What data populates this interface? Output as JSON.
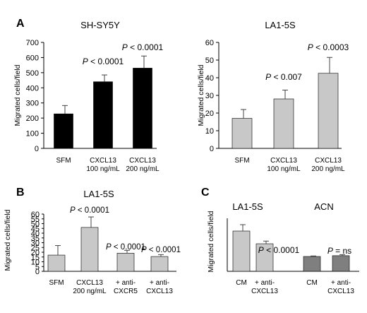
{
  "chart_data": [
    {
      "type": "bar",
      "panel": "A",
      "title": "SH-SY5Y",
      "ylabel": "Migrated cells/field",
      "ylim": [
        0,
        700
      ],
      "yticks": [
        0,
        100,
        200,
        300,
        400,
        500,
        600,
        700
      ],
      "categories": [
        [
          "SFM"
        ],
        [
          "CXCL13",
          "100 ng/mL"
        ],
        [
          "CXCL13",
          "200 ng/mL"
        ]
      ],
      "values": [
        228,
        440,
        530
      ],
      "errors": [
        55,
        45,
        80
      ],
      "bar_color": "#000000",
      "annotations": [
        null,
        [
          "P",
          " < 0.0001"
        ],
        [
          "P",
          " < 0.0001"
        ]
      ]
    },
    {
      "type": "bar",
      "panel": "",
      "title": "LA1-5S",
      "ylabel": "Migrated cells/field",
      "ylim": [
        0,
        60
      ],
      "yticks": [
        0,
        10,
        20,
        30,
        40,
        50,
        60
      ],
      "categories": [
        [
          "SFM"
        ],
        [
          "CXCL13",
          "100 ng/mL"
        ],
        [
          "CXCL13",
          "200 ng/mL"
        ]
      ],
      "values": [
        17,
        28,
        42.5
      ],
      "errors": [
        5,
        5,
        9
      ],
      "bar_color": "#c8c8c8",
      "annotations": [
        null,
        [
          "P",
          " < 0.007"
        ],
        [
          "P",
          " < 0.0003"
        ]
      ]
    },
    {
      "type": "bar",
      "panel": "B",
      "title": "LA1-5S",
      "ylabel": "Migrated cells/field",
      "ylim": [
        0,
        60
      ],
      "yticks": [
        0,
        5,
        10,
        15,
        20,
        25,
        30,
        35,
        40,
        45,
        50,
        55,
        60
      ],
      "categories": [
        [
          "SFM"
        ],
        [
          "CXCL13",
          "200 ng/mL"
        ],
        [
          "+ anti-",
          "CXCR5"
        ],
        [
          "+ anti-",
          "CXCL13"
        ]
      ],
      "values": [
        17,
        46,
        19,
        15.5
      ],
      "errors": [
        10,
        11,
        3,
        2
      ],
      "bar_color": "#c8c8c8",
      "annotations": [
        null,
        [
          "P",
          " < 0.0001"
        ],
        [
          "P",
          " < 0.0001"
        ],
        [
          "P",
          " < 0.0001"
        ]
      ]
    },
    {
      "type": "bar",
      "panel": "C",
      "title": "",
      "group_titles": [
        "LA1-5S",
        "ACN"
      ],
      "ylabel": "Migrated cells/field",
      "ylim": [
        0,
        100
      ],
      "categories": [
        [
          "CM"
        ],
        [
          "+ anti-",
          "CXCL13"
        ],
        [
          "CM"
        ],
        [
          "+ anti-",
          "CXCL13"
        ]
      ],
      "values": [
        76,
        52,
        28,
        29.5
      ],
      "errors": [
        12,
        5,
        1,
        2
      ],
      "bar_colors": [
        "#c8c8c8",
        "#c8c8c8",
        "#7f7f7f",
        "#7f7f7f"
      ],
      "annotations": [
        null,
        [
          "P",
          " < 0.0001"
        ],
        null,
        [
          "P",
          " = ns"
        ]
      ]
    }
  ]
}
